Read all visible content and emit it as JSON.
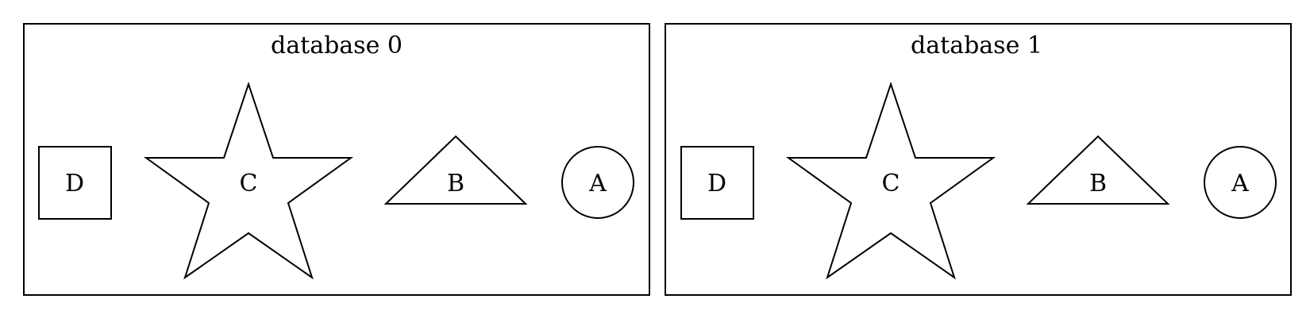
{
  "clusters": [
    {
      "label": "database 0",
      "nodes": [
        {
          "label": "D",
          "shape": "square"
        },
        {
          "label": "C",
          "shape": "star"
        },
        {
          "label": "B",
          "shape": "triangle"
        },
        {
          "label": "A",
          "shape": "circle"
        }
      ]
    },
    {
      "label": "database 1",
      "nodes": [
        {
          "label": "D",
          "shape": "square"
        },
        {
          "label": "C",
          "shape": "star"
        },
        {
          "label": "B",
          "shape": "triangle"
        },
        {
          "label": "A",
          "shape": "circle"
        }
      ]
    }
  ],
  "colors": {
    "stroke": "#000000",
    "background": "#ffffff"
  }
}
